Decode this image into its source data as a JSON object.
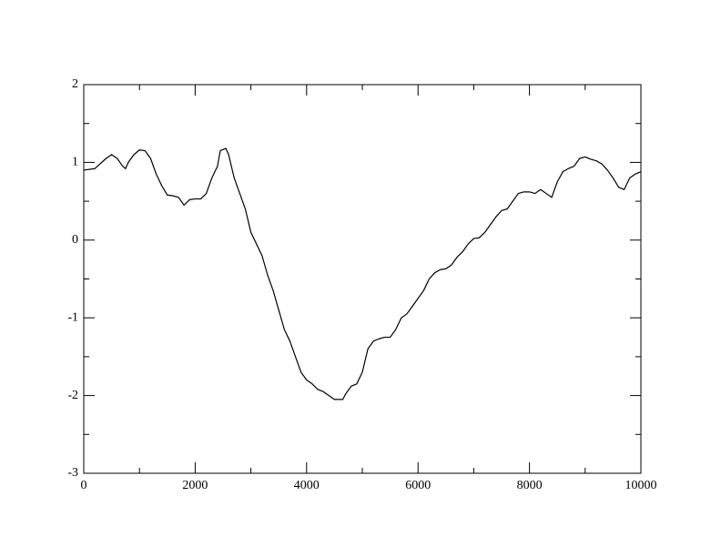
{
  "chart_data": {
    "type": "line",
    "x": [
      0,
      200,
      400,
      500,
      600,
      700,
      750,
      800,
      900,
      1000,
      1100,
      1200,
      1300,
      1400,
      1500,
      1600,
      1700,
      1800,
      1900,
      2000,
      2100,
      2200,
      2300,
      2400,
      2450,
      2550,
      2600,
      2700,
      2800,
      2900,
      3000,
      3100,
      3200,
      3300,
      3400,
      3500,
      3600,
      3700,
      3800,
      3900,
      4000,
      4100,
      4200,
      4300,
      4400,
      4500,
      4650,
      4700,
      4800,
      4900,
      5000,
      5100,
      5200,
      5300,
      5400,
      5500,
      5600,
      5700,
      5800,
      5900,
      6000,
      6100,
      6200,
      6300,
      6400,
      6500,
      6600,
      6700,
      6800,
      6900,
      7000,
      7100,
      7200,
      7300,
      7400,
      7500,
      7600,
      7700,
      7800,
      7900,
      8000,
      8100,
      8200,
      8300,
      8400,
      8500,
      8600,
      8700,
      8800,
      8900,
      9000,
      9100,
      9200,
      9300,
      9400,
      9500,
      9600,
      9700,
      9800,
      9900,
      10000
    ],
    "series": [
      {
        "color": "#000000",
        "values": [
          0.9,
          0.92,
          1.05,
          1.1,
          1.05,
          0.95,
          0.92,
          1.0,
          1.1,
          1.16,
          1.15,
          1.05,
          0.85,
          0.7,
          0.58,
          0.57,
          0.55,
          0.45,
          0.52,
          0.53,
          0.53,
          0.6,
          0.8,
          0.95,
          1.15,
          1.18,
          1.1,
          0.8,
          0.6,
          0.4,
          0.1,
          -0.05,
          -0.2,
          -0.45,
          -0.65,
          -0.9,
          -1.15,
          -1.3,
          -1.5,
          -1.7,
          -1.8,
          -1.85,
          -1.92,
          -1.95,
          -2.0,
          -2.05,
          -2.05,
          -1.98,
          -1.88,
          -1.85,
          -1.7,
          -1.4,
          -1.3,
          -1.27,
          -1.25,
          -1.25,
          -1.15,
          -1.0,
          -0.95,
          -0.85,
          -0.75,
          -0.65,
          -0.5,
          -0.42,
          -0.38,
          -0.37,
          -0.32,
          -0.22,
          -0.15,
          -0.05,
          0.02,
          0.03,
          0.1,
          0.2,
          0.3,
          0.38,
          0.4,
          0.5,
          0.6,
          0.62,
          0.62,
          0.6,
          0.65,
          0.6,
          0.55,
          0.75,
          0.88,
          0.92,
          0.95,
          1.05,
          1.07,
          1.04,
          1.02,
          0.98,
          0.9,
          0.8,
          0.68,
          0.65,
          0.8,
          0.85,
          0.88
        ]
      }
    ],
    "xlim": [
      0,
      10000
    ],
    "ylim": [
      -3,
      2
    ],
    "xticks": [
      0,
      2000,
      4000,
      6000,
      8000,
      10000
    ],
    "yticks": [
      -3,
      -2,
      -1,
      0,
      1,
      2
    ],
    "xticks_minor": [
      1000,
      3000,
      5000,
      7000,
      9000
    ],
    "yticks_minor": [
      -2.5,
      -1.5,
      -0.5,
      0.5,
      1.5
    ]
  }
}
